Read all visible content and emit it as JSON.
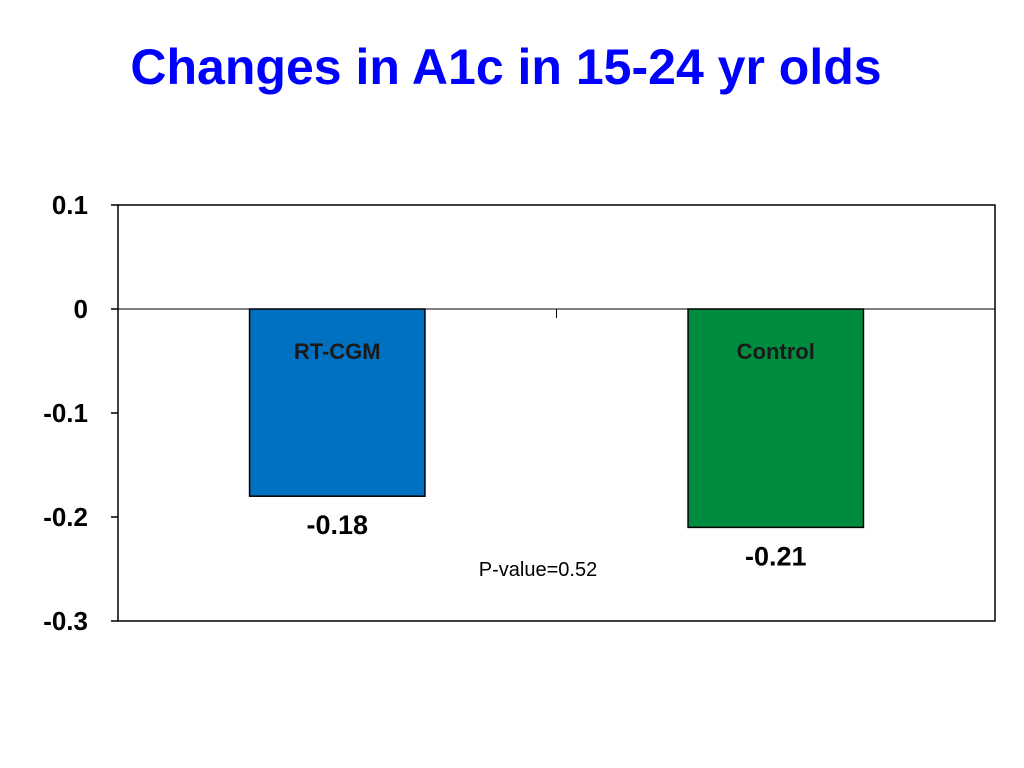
{
  "slide": {
    "title": "Changes in A1c in 15-24 yr olds"
  },
  "chart_data": {
    "type": "bar",
    "title": "",
    "xlabel": "",
    "ylabel": "",
    "categories": [
      "RT-CGM",
      "Control"
    ],
    "values": [
      -0.18,
      -0.21
    ],
    "value_labels": [
      "-0.18",
      "-0.21"
    ],
    "colors": [
      "#0070c0",
      "#008c3e"
    ],
    "ylim": [
      -0.3,
      0.1
    ],
    "yticks": [
      0.1,
      0,
      -0.1,
      -0.2,
      -0.3
    ],
    "ytick_labels": [
      "0.1",
      "0",
      "-0.1",
      "-0.2",
      "-0.3"
    ],
    "grid": false,
    "legend": "none",
    "annotations": [
      "P-value=0.52"
    ]
  }
}
